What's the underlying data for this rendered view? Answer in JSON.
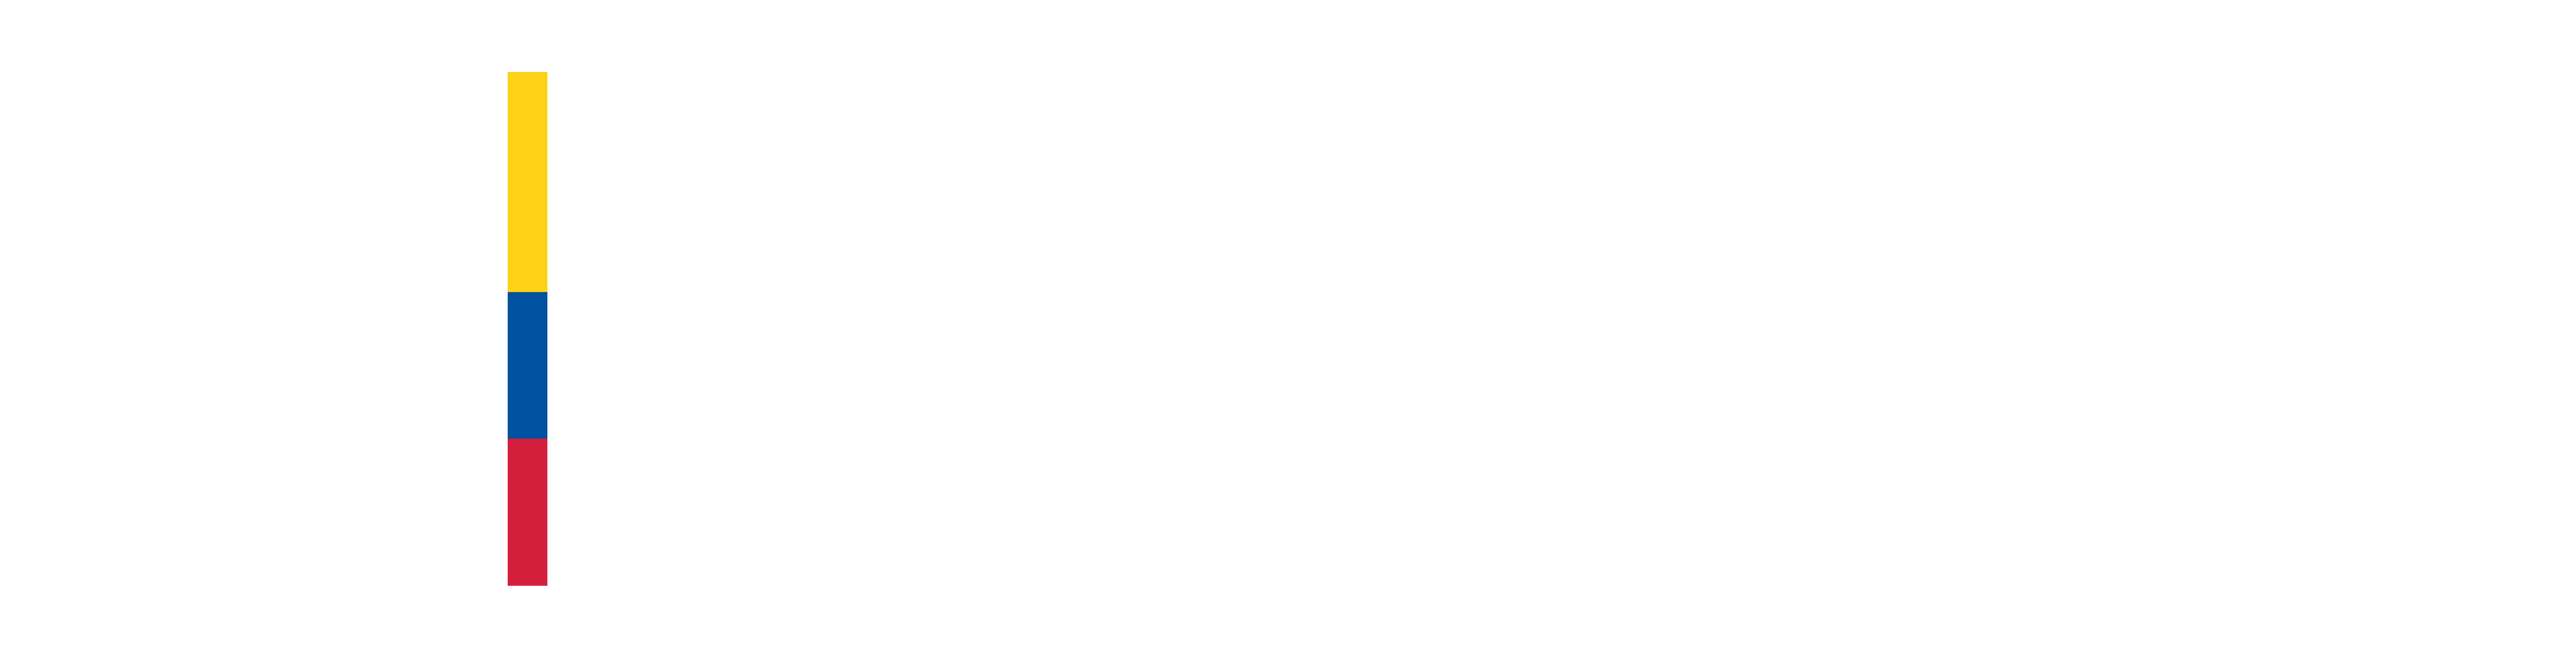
{
  "logo": {
    "icon": "colombia-flag-stripe-icon",
    "colors": {
      "yellow": "#FCD116",
      "blue": "#0052A0",
      "red": "#D41F3C"
    },
    "background": "#FFFFFF"
  }
}
